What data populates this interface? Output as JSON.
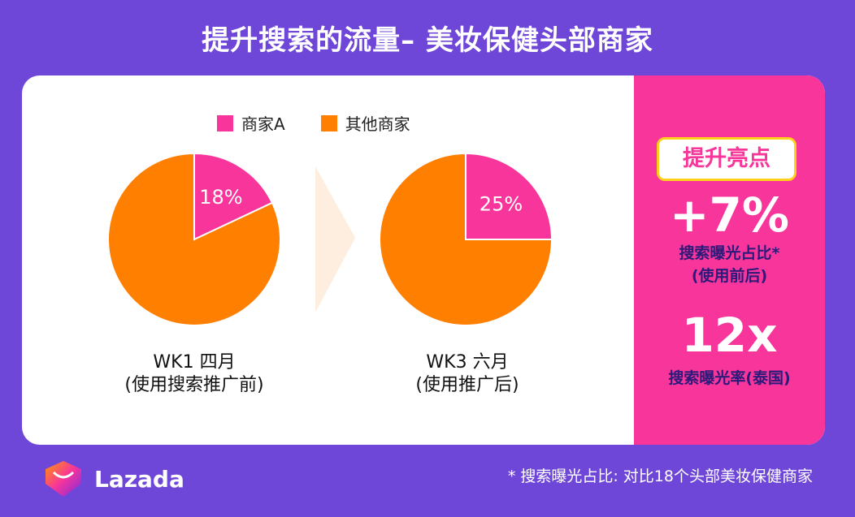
{
  "title": "提升搜索的流量– 美妆保健头部商家",
  "legend": {
    "merchant_a": "商家A",
    "others": "其他商家"
  },
  "colors": {
    "merchant_a": "#f8359a",
    "others": "#ff7f00",
    "arrow": "#fdeee0"
  },
  "chart_data": [
    {
      "type": "pie",
      "caption_line1": "WK1 四月",
      "caption_line2": "(使用搜索推广前)",
      "slices": [
        {
          "name": "商家A",
          "value": 18,
          "label": "18%"
        },
        {
          "name": "其他商家",
          "value": 82
        }
      ]
    },
    {
      "type": "pie",
      "caption_line1": "WK3 六月",
      "caption_line2": "(使用推广后)",
      "slices": [
        {
          "name": "商家A",
          "value": 25,
          "label": "25%"
        },
        {
          "name": "其他商家",
          "value": 75
        }
      ]
    }
  ],
  "highlights": {
    "badge": "提升亮点",
    "stat1_value": "+7%",
    "stat1_label_line1": "搜索曝光占比*",
    "stat1_label_line2": "(使用前后)",
    "stat2_value": "12x",
    "stat2_label": "搜索曝光率(泰国)"
  },
  "footnote": "* 搜索曝光占比: 对比18个头部美妆保健商家",
  "logo": {
    "text": "Lazada",
    "icon": "lazada-heart-icon"
  }
}
